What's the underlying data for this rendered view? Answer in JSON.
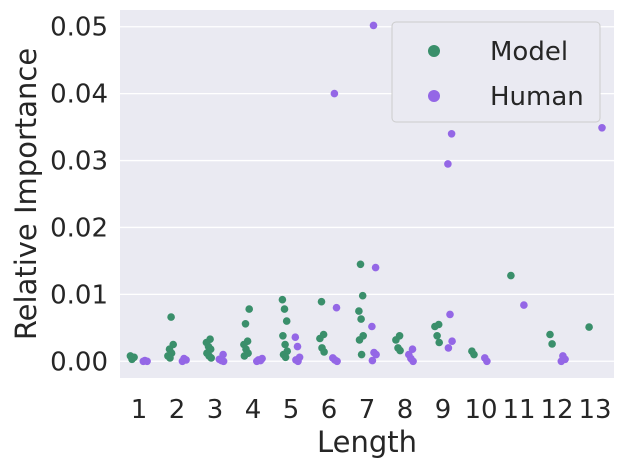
{
  "chart_data": {
    "type": "scatter",
    "style": "strip",
    "xlabel": "Length",
    "ylabel": "Relative Importance",
    "categories": [
      "1",
      "2",
      "3",
      "4",
      "5",
      "6",
      "7",
      "8",
      "9",
      "10",
      "11",
      "12",
      "13"
    ],
    "ylim": [
      -0.0025,
      0.0525
    ],
    "yticks": [
      "0.00",
      "0.01",
      "0.02",
      "0.03",
      "0.04",
      "0.05"
    ],
    "grid": true,
    "legend_position": "top-right",
    "series": [
      {
        "name": "Model",
        "color": "#3a8f6b",
        "points": [
          {
            "x": "1",
            "y": 0.0003
          },
          {
            "x": "1",
            "y": 0.0006
          },
          {
            "x": "1",
            "y": 0.0008
          },
          {
            "x": "2",
            "y": 0.0066
          },
          {
            "x": "2",
            "y": 0.0025
          },
          {
            "x": "2",
            "y": 0.0018
          },
          {
            "x": "2",
            "y": 0.0012
          },
          {
            "x": "2",
            "y": 0.0008
          },
          {
            "x": "2",
            "y": 0.0005
          },
          {
            "x": "3",
            "y": 0.0033
          },
          {
            "x": "3",
            "y": 0.0028
          },
          {
            "x": "3",
            "y": 0.0022
          },
          {
            "x": "3",
            "y": 0.0018
          },
          {
            "x": "3",
            "y": 0.0012
          },
          {
            "x": "3",
            "y": 0.0008
          },
          {
            "x": "3",
            "y": 0.0005
          },
          {
            "x": "4",
            "y": 0.0078
          },
          {
            "x": "4",
            "y": 0.0056
          },
          {
            "x": "4",
            "y": 0.003
          },
          {
            "x": "4",
            "y": 0.0025
          },
          {
            "x": "4",
            "y": 0.0018
          },
          {
            "x": "4",
            "y": 0.0012
          },
          {
            "x": "4",
            "y": 0.0008
          },
          {
            "x": "5",
            "y": 0.0092
          },
          {
            "x": "5",
            "y": 0.0078
          },
          {
            "x": "5",
            "y": 0.006
          },
          {
            "x": "5",
            "y": 0.0038
          },
          {
            "x": "5",
            "y": 0.0025
          },
          {
            "x": "5",
            "y": 0.0015
          },
          {
            "x": "5",
            "y": 0.001
          },
          {
            "x": "5",
            "y": 0.0006
          },
          {
            "x": "6",
            "y": 0.0089
          },
          {
            "x": "6",
            "y": 0.004
          },
          {
            "x": "6",
            "y": 0.0034
          },
          {
            "x": "6",
            "y": 0.002
          },
          {
            "x": "6",
            "y": 0.0014
          },
          {
            "x": "7",
            "y": 0.0145
          },
          {
            "x": "7",
            "y": 0.0098
          },
          {
            "x": "7",
            "y": 0.0075
          },
          {
            "x": "7",
            "y": 0.0063
          },
          {
            "x": "7",
            "y": 0.0038
          },
          {
            "x": "7",
            "y": 0.0032
          },
          {
            "x": "7",
            "y": 0.001
          },
          {
            "x": "8",
            "y": 0.0038
          },
          {
            "x": "8",
            "y": 0.0032
          },
          {
            "x": "8",
            "y": 0.002
          },
          {
            "x": "8",
            "y": 0.0016
          },
          {
            "x": "9",
            "y": 0.0055
          },
          {
            "x": "9",
            "y": 0.0052
          },
          {
            "x": "9",
            "y": 0.0038
          },
          {
            "x": "9",
            "y": 0.0028
          },
          {
            "x": "10",
            "y": 0.0015
          },
          {
            "x": "10",
            "y": 0.001
          },
          {
            "x": "11",
            "y": 0.0128
          },
          {
            "x": "12",
            "y": 0.004
          },
          {
            "x": "12",
            "y": 0.0026
          },
          {
            "x": "13",
            "y": 0.0051
          }
        ]
      },
      {
        "name": "Human",
        "color": "#9467e6",
        "points": [
          {
            "x": "1",
            "y": 0.0001
          },
          {
            "x": "1",
            "y": 0.0
          },
          {
            "x": "1",
            "y": 0.0
          },
          {
            "x": "2",
            "y": 0.0004
          },
          {
            "x": "2",
            "y": 0.0002
          },
          {
            "x": "2",
            "y": 0.0
          },
          {
            "x": "3",
            "y": 0.001
          },
          {
            "x": "3",
            "y": 0.0003
          },
          {
            "x": "3",
            "y": 0.0001
          },
          {
            "x": "3",
            "y": 0.0
          },
          {
            "x": "4",
            "y": 0.0004
          },
          {
            "x": "4",
            "y": 0.0002
          },
          {
            "x": "4",
            "y": 0.0001
          },
          {
            "x": "4",
            "y": 0.0
          },
          {
            "x": "5",
            "y": 0.0036
          },
          {
            "x": "5",
            "y": 0.0022
          },
          {
            "x": "5",
            "y": 0.0006
          },
          {
            "x": "5",
            "y": 0.0002
          },
          {
            "x": "5",
            "y": 0.0
          },
          {
            "x": "6",
            "y": 0.04
          },
          {
            "x": "6",
            "y": 0.008
          },
          {
            "x": "6",
            "y": 0.0005
          },
          {
            "x": "6",
            "y": 0.0002
          },
          {
            "x": "6",
            "y": 0.0
          },
          {
            "x": "7",
            "y": 0.0502
          },
          {
            "x": "7",
            "y": 0.014
          },
          {
            "x": "7",
            "y": 0.0052
          },
          {
            "x": "7",
            "y": 0.0013
          },
          {
            "x": "7",
            "y": 0.001
          },
          {
            "x": "7",
            "y": 0.0001
          },
          {
            "x": "8",
            "y": 0.0018
          },
          {
            "x": "8",
            "y": 0.001
          },
          {
            "x": "8",
            "y": 0.0004
          },
          {
            "x": "8",
            "y": 0.0
          },
          {
            "x": "9",
            "y": 0.034
          },
          {
            "x": "9",
            "y": 0.0295
          },
          {
            "x": "9",
            "y": 0.007
          },
          {
            "x": "9",
            "y": 0.003
          },
          {
            "x": "9",
            "y": 0.002
          },
          {
            "x": "10",
            "y": 0.0005
          },
          {
            "x": "10",
            "y": 0.0
          },
          {
            "x": "11",
            "y": 0.0084
          },
          {
            "x": "12",
            "y": 0.0008
          },
          {
            "x": "12",
            "y": 0.0003
          },
          {
            "x": "12",
            "y": 0.0
          },
          {
            "x": "13",
            "y": 0.0349
          }
        ]
      }
    ]
  }
}
